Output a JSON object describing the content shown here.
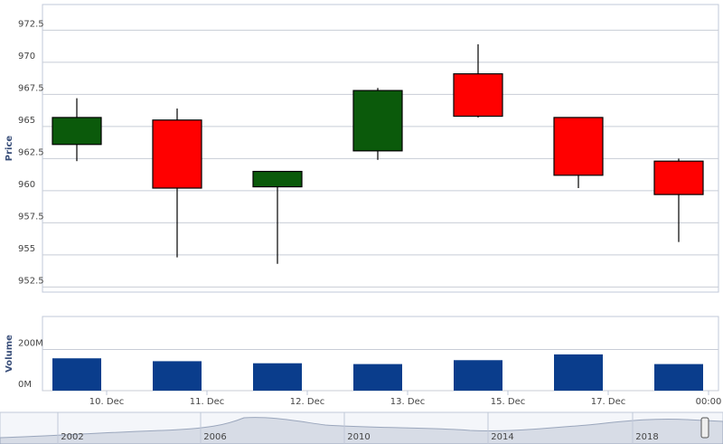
{
  "chart_data": [
    {
      "type": "candlestick",
      "y_label": "Price",
      "open": [
        963.6,
        965.5,
        960.3,
        963.1,
        969.1,
        965.7,
        962.3
      ],
      "high": [
        967.2,
        966.4,
        961.5,
        968.0,
        971.4,
        965.7,
        962.5
      ],
      "low": [
        962.3,
        954.8,
        954.3,
        962.4,
        965.7,
        960.2,
        956.0
      ],
      "close": [
        965.7,
        960.2,
        961.5,
        967.8,
        965.8,
        961.2,
        959.7
      ],
      "up_color": "#0b5a0b",
      "down_color": "#ff0000",
      "ylim": [
        952.1,
        974.5
      ],
      "yticks": [
        952.5,
        955,
        957.5,
        960,
        962.5,
        965,
        967.5,
        970,
        972.5
      ]
    },
    {
      "type": "bar",
      "y_label": "Volume",
      "values": [
        157000000,
        143000000,
        133000000,
        129000000,
        148000000,
        176000000,
        129000000
      ],
      "color": "#0a3d8c",
      "ylim": [
        0,
        360000000
      ],
      "yticks": [
        {
          "value": 0,
          "label": "0M"
        },
        {
          "value": 200000000,
          "label": "200M"
        }
      ],
      "x_tick_labels": [
        "10. Dec",
        "11. Dec",
        "12. Dec",
        "13. Dec",
        "15. Dec",
        "17. Dec",
        "00:00"
      ]
    }
  ],
  "navigator": {
    "labels": [
      "2002",
      "2006",
      "2010",
      "2014",
      "2018"
    ]
  }
}
